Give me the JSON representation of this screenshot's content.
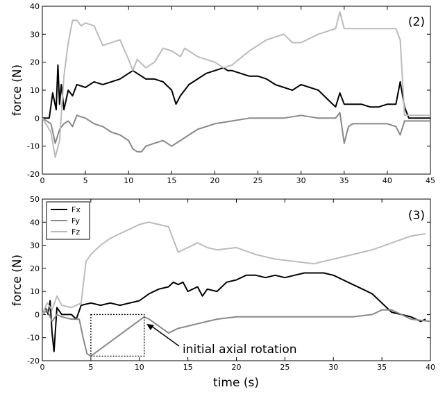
{
  "chart_data": [
    {
      "type": "line",
      "panel_label": "(2)",
      "title": "",
      "xlabel": "",
      "ylabel": "force (N)",
      "xlim": [
        0,
        45
      ],
      "ylim": [
        -20,
        40
      ],
      "xticks": [
        0,
        5,
        10,
        15,
        20,
        25,
        30,
        35,
        40,
        45
      ],
      "yticks": [
        -20,
        -10,
        0,
        10,
        20,
        30,
        40
      ],
      "grid": false,
      "legend": null,
      "series": [
        {
          "color": "#000000",
          "x": [
            0,
            0.8,
            1.2,
            1.6,
            1.8,
            2.0,
            2.2,
            2.5,
            3.0,
            3.5,
            4.0,
            5.0,
            6.0,
            7.0,
            8.0,
            9.0,
            10.0,
            10.5,
            11.0,
            12.0,
            13.0,
            14.0,
            15.0,
            15.5,
            16.0,
            17.0,
            18.0,
            19.0,
            20.0,
            21.0,
            21.5,
            22.0,
            23.0,
            24.0,
            25.0,
            26.0,
            27.0,
            28.0,
            29.0,
            30.0,
            31.0,
            32.0,
            33.0,
            34.0,
            34.5,
            35.0,
            36.0,
            37.0,
            38.0,
            39.0,
            40.0,
            41.0,
            41.5,
            42.0,
            42.5,
            45.0
          ],
          "y": [
            0,
            0,
            9,
            3,
            19,
            5,
            12,
            3,
            10,
            8,
            12,
            11,
            13,
            12,
            13,
            14,
            16,
            17,
            16,
            14,
            14,
            13,
            10,
            5,
            8,
            12,
            14,
            16,
            17,
            18,
            17,
            17,
            16,
            15,
            15,
            14,
            12,
            11,
            10,
            12,
            11,
            10,
            7,
            4,
            9,
            5,
            5,
            5,
            4,
            4,
            5,
            5,
            13,
            4,
            0,
            0
          ]
        },
        {
          "color": "#888888",
          "x": [
            0,
            1.0,
            1.5,
            2.0,
            2.5,
            3.0,
            3.5,
            4.0,
            5.0,
            6.0,
            7.0,
            8.0,
            9.0,
            10.0,
            10.5,
            11.0,
            11.5,
            12.0,
            13.0,
            14.0,
            15.0,
            16.0,
            17.0,
            18.0,
            20.0,
            22.0,
            24.0,
            26.0,
            28.0,
            30.0,
            32.0,
            33.0,
            34.0,
            34.5,
            35.0,
            35.5,
            36.0,
            38.0,
            40.0,
            41.0,
            41.5,
            42.0,
            45.0
          ],
          "y": [
            0,
            -2,
            -9,
            -4,
            -2,
            -1,
            -3,
            1,
            0,
            -2,
            -3,
            -5,
            -6,
            -8,
            -11,
            -12,
            -12,
            -10,
            -9,
            -8,
            -10,
            -8,
            -6,
            -4,
            -2,
            -1,
            0,
            0,
            0,
            1,
            0,
            0,
            0,
            2,
            -9,
            -3,
            -2,
            -2,
            -2,
            -3,
            -6,
            -1,
            -1
          ]
        },
        {
          "color": "#bbbbbb",
          "x": [
            0,
            1.0,
            1.5,
            2.0,
            2.5,
            3.0,
            3.5,
            4.0,
            4.5,
            5.0,
            6.0,
            7.0,
            8.0,
            9.0,
            10.0,
            10.5,
            11.0,
            12.0,
            13.0,
            14.0,
            15.0,
            16.0,
            16.5,
            17.0,
            18.0,
            20.0,
            21.0,
            22.0,
            24.0,
            26.0,
            28.0,
            29.0,
            30.0,
            32.0,
            34.0,
            34.5,
            35.0,
            36.0,
            38.0,
            40.0,
            41.0,
            41.5,
            42.0,
            45.0
          ],
          "y": [
            0,
            -5,
            -14,
            -8,
            15,
            27,
            35,
            35,
            33,
            34,
            33,
            26,
            27,
            28,
            21,
            17,
            21,
            18,
            20,
            25,
            24,
            22,
            25,
            24,
            22,
            20,
            18,
            19,
            24,
            28,
            30,
            27,
            27,
            30,
            32,
            38,
            32,
            32,
            32,
            32,
            32,
            28,
            1,
            1
          ]
        }
      ]
    },
    {
      "type": "line",
      "panel_label": "(3)",
      "title": "",
      "xlabel": "time (s)",
      "ylabel": "force (N)",
      "xlim": [
        0,
        40
      ],
      "ylim": [
        -20,
        50
      ],
      "xticks": [
        0,
        5,
        10,
        15,
        20,
        25,
        30,
        35,
        40
      ],
      "yticks": [
        -20,
        -10,
        0,
        10,
        20,
        30,
        40,
        50
      ],
      "grid": false,
      "legend": "top-left",
      "series": [
        {
          "name": "Fx",
          "color": "#000000",
          "x": [
            0,
            0.3,
            0.6,
            0.8,
            1.0,
            1.2,
            1.5,
            2.0,
            2.5,
            3.0,
            3.5,
            4.0,
            5.0,
            6.0,
            7.0,
            8.0,
            9.0,
            10.0,
            11.0,
            12.0,
            13.0,
            13.5,
            14.0,
            14.5,
            15.0,
            16.0,
            16.5,
            17.0,
            18.0,
            19.0,
            20.0,
            21.0,
            22.0,
            23.0,
            24.0,
            25.0,
            26.0,
            27.0,
            28.0,
            29.0,
            30.0,
            31.0,
            32.0,
            33.0,
            34.0,
            35.0,
            36.0,
            37.0,
            38.0,
            39.0,
            39.5
          ],
          "y": [
            0,
            3,
            0,
            6,
            -8,
            -16,
            3,
            0,
            0,
            0,
            -2,
            4,
            5,
            4,
            5,
            4,
            5,
            6,
            9,
            11,
            12,
            14,
            13,
            14,
            10,
            12,
            8,
            11,
            10,
            14,
            15,
            17,
            17,
            16,
            17,
            16,
            17,
            18,
            18,
            18,
            17,
            15,
            13,
            11,
            9,
            5,
            1,
            0,
            -1,
            -3,
            -2
          ]
        },
        {
          "name": "Fy",
          "color": "#888888",
          "x": [
            0,
            0.5,
            1.0,
            1.5,
            2.0,
            3.0,
            3.8,
            4.2,
            4.6,
            5.0,
            10.5,
            11.0,
            12.0,
            13.0,
            14.0,
            15.0,
            16.0,
            17.0,
            18.0,
            20.0,
            22.0,
            24.0,
            26.0,
            28.0,
            30.0,
            32.0,
            34.0,
            35.0,
            36.0,
            37.0,
            38.0,
            40.0
          ],
          "y": [
            0,
            2,
            -3,
            0,
            -1,
            -2,
            -2,
            -10,
            -17,
            -18,
            -1,
            -2,
            -5,
            -8,
            -6,
            -5,
            -4,
            -3,
            -2,
            -1,
            -1,
            -1,
            -1,
            -1,
            -1,
            -1,
            0,
            2,
            2,
            0,
            -2,
            -3
          ]
        },
        {
          "name": "Fz",
          "color": "#bbbbbb",
          "x": [
            0,
            0.5,
            1.0,
            1.5,
            2.0,
            3.0,
            4.0,
            4.5,
            5.0,
            6.0,
            7.0,
            8.0,
            9.0,
            10.0,
            11.0,
            12.0,
            13.0,
            14.0,
            15.0,
            16.0,
            17.0,
            18.0,
            20.0,
            22.0,
            24.0,
            26.0,
            28.0,
            30.0,
            32.0,
            34.0,
            36.0,
            38.0,
            39.5
          ],
          "y": [
            0,
            5,
            2,
            8,
            4,
            3,
            5,
            23,
            26,
            30,
            33,
            35,
            37,
            39,
            40,
            39,
            38,
            27,
            29,
            31,
            29,
            28,
            29,
            26,
            24,
            23,
            22,
            24,
            26,
            28,
            31,
            34,
            35
          ]
        }
      ],
      "annotation": {
        "text": "initial axial rotation",
        "box_x": [
          5,
          10.5
        ],
        "box_y": [
          -18,
          0
        ],
        "arrow_target": [
          10.6,
          -4
        ]
      }
    }
  ]
}
